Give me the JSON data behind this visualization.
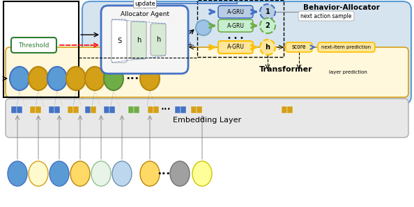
{
  "bg_color": "#FFFFFF",
  "behavior_allocator_bg": "#D6E4F0",
  "transformer_bg": "#FFF8DC",
  "embedding_bg": "#E8E8E8",
  "allocator_agent_bg": "#F5F5F5",
  "allocator_agent_border": "#4472C4",
  "threshold_bg": "#FFFFFF",
  "threshold_border": "#2E7D32",
  "threshold_text": "Threshold",
  "agru_blue_bg": "#B8CCE4",
  "agru_blue_border": "#4472C4",
  "agru_green_bg": "#C6EFCE",
  "agru_green_border": "#70AD47",
  "agru_yellow_bg": "#FFE699",
  "agru_yellow_border": "#FFC000",
  "score_bg": "#FFE699",
  "score_border": "#FFC000",
  "next_item_bg": "#FFE699",
  "next_item_border": "#FFC000",
  "circle1_bg": "#B8CCE4",
  "circle2_bg": "#C6EFCE",
  "circleh_bg": "#FFE699",
  "behavior_allocator_title": "Behavior-Allocator",
  "transformer_label": "Transformer",
  "embedding_label": "Embedding Layer",
  "allocator_agent_label": "Allocator Agent",
  "update_label": "update",
  "next_action_label": "next action sample",
  "layer_prediction_label": "layer prediction",
  "score_label": "score",
  "next_item_label": "next-item prediction",
  "circle_blue_color": "#5B9BD5",
  "circle_yellow_color": "#FFD966",
  "circle_green_color": "#70AD47",
  "circle_gray_color": "#9DC3E6",
  "agru_arrow_blue": "#4472C4",
  "agru_arrow_green": "#70AD47",
  "agru_arrow_yellow": "#FFC000"
}
